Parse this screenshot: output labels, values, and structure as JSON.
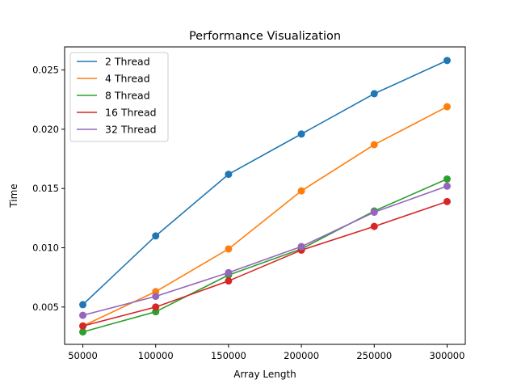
{
  "chart_data": {
    "type": "line",
    "title": "Performance Visualization",
    "xlabel": "Array Length",
    "ylabel": "Time",
    "x": [
      50000,
      100000,
      150000,
      200000,
      250000,
      300000
    ],
    "xlim": [
      37500,
      312500
    ],
    "ylim": [
      0.00185,
      0.02695
    ],
    "xticks": [
      50000,
      100000,
      150000,
      200000,
      250000,
      300000
    ],
    "yticks": [
      0.005,
      0.01,
      0.015,
      0.02,
      0.025
    ],
    "ytick_labels": [
      "0.005",
      "0.010",
      "0.015",
      "0.020",
      "0.025"
    ],
    "grid": false,
    "legend_position": "top-left",
    "markers": true,
    "series": [
      {
        "name": "2 Thread",
        "color": "#1f77b4",
        "values": [
          0.0052,
          0.011,
          0.0162,
          0.0196,
          0.023,
          0.0258
        ]
      },
      {
        "name": "4 Thread",
        "color": "#ff7f0e",
        "values": [
          0.0034,
          0.0063,
          0.0099,
          0.0148,
          0.0187,
          0.0219
        ]
      },
      {
        "name": "8 Thread",
        "color": "#2ca02c",
        "values": [
          0.0029,
          0.0046,
          0.0077,
          0.0099,
          0.0131,
          0.0158
        ]
      },
      {
        "name": "16 Thread",
        "color": "#d62728",
        "values": [
          0.0034,
          0.005,
          0.0072,
          0.0098,
          0.0118,
          0.0139
        ]
      },
      {
        "name": "32 Thread",
        "color": "#9467bd",
        "values": [
          0.0043,
          0.0059,
          0.0079,
          0.0101,
          0.013,
          0.0152
        ]
      }
    ]
  }
}
